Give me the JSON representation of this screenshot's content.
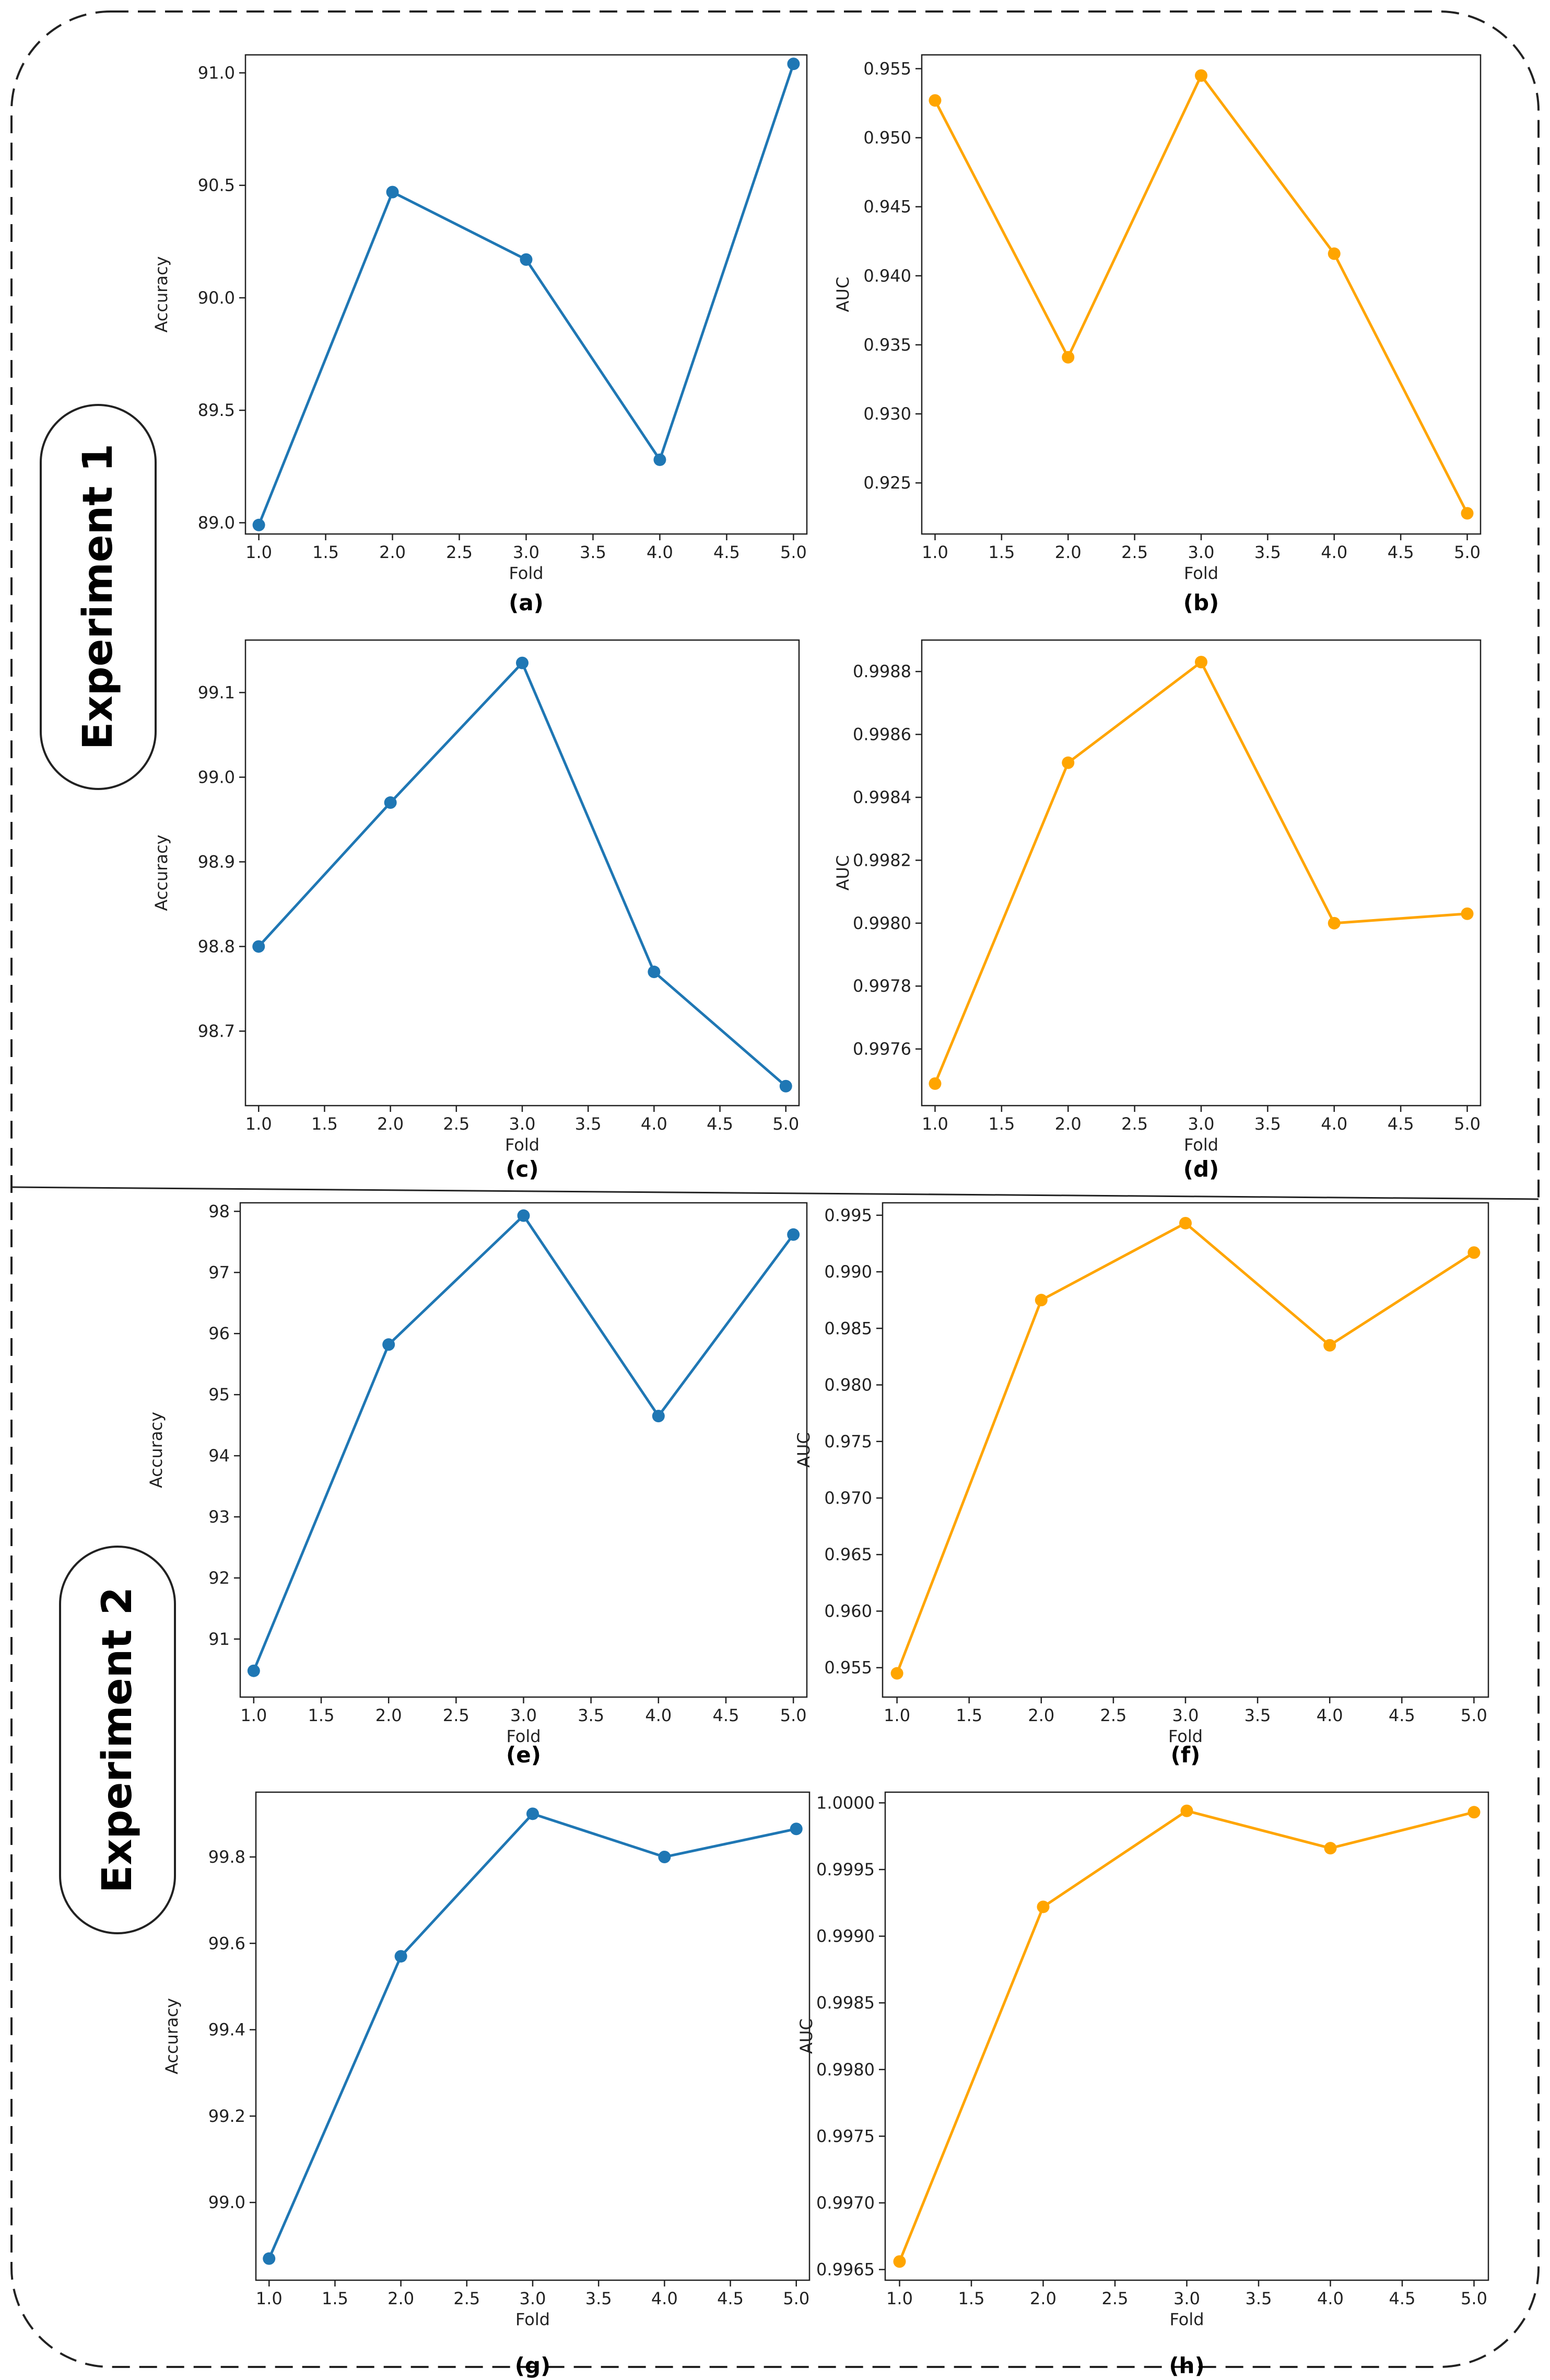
{
  "figure": {
    "experiments": [
      "Experiment 1",
      "Experiment 2"
    ],
    "colors": {
      "accuracy": "#1f77b4",
      "auc": "#ffa500",
      "frame": "#222222"
    }
  },
  "chart_data": [
    {
      "type": "line",
      "caption": "(a)",
      "color": "#1f77b4",
      "title": "",
      "xlabel": "Fold",
      "ylabel": "Accuracy",
      "x": [
        1.0,
        2.0,
        3.0,
        4.0,
        5.0
      ],
      "values": [
        88.99,
        90.47,
        90.17,
        89.28,
        91.04
      ],
      "xlim": [
        0.9,
        5.1
      ],
      "ylim": [
        88.95,
        91.08
      ],
      "xticks": [
        1.0,
        1.5,
        2.0,
        2.5,
        3.0,
        3.5,
        4.0,
        4.5,
        5.0
      ],
      "xtick_labels": [
        "1.0",
        "1.5",
        "2.0",
        "2.5",
        "3.0",
        "3.5",
        "4.0",
        "4.5",
        "5.0"
      ],
      "yticks": [
        89.0,
        89.5,
        90.0,
        90.5,
        91.0
      ],
      "ytick_labels": [
        "89.0",
        "89.5",
        "90.0",
        "90.5",
        "91.0"
      ]
    },
    {
      "type": "line",
      "caption": "(b)",
      "color": "#ffa500",
      "title": "",
      "xlabel": "Fold",
      "ylabel": "AUC",
      "x": [
        1.0,
        2.0,
        3.0,
        4.0,
        5.0
      ],
      "values": [
        0.9527,
        0.9341,
        0.9545,
        0.9416,
        0.9228
      ],
      "xlim": [
        0.9,
        5.1
      ],
      "ylim": [
        0.9213,
        0.956
      ],
      "xticks": [
        1.0,
        1.5,
        2.0,
        2.5,
        3.0,
        3.5,
        4.0,
        4.5,
        5.0
      ],
      "xtick_labels": [
        "1.0",
        "1.5",
        "2.0",
        "2.5",
        "3.0",
        "3.5",
        "4.0",
        "4.5",
        "5.0"
      ],
      "yticks": [
        0.925,
        0.93,
        0.935,
        0.94,
        0.945,
        0.95,
        0.955
      ],
      "ytick_labels": [
        "0.925",
        "0.930",
        "0.935",
        "0.940",
        "0.945",
        "0.950",
        "0.955"
      ]
    },
    {
      "type": "line",
      "caption": "(c)",
      "color": "#1f77b4",
      "title": "",
      "xlabel": "Fold",
      "ylabel": "Accuracy",
      "x": [
        1.0,
        2.0,
        3.0,
        4.0,
        5.0
      ],
      "values": [
        98.8,
        98.97,
        99.135,
        98.77,
        98.635
      ],
      "xlim": [
        0.9,
        5.1
      ],
      "ylim": [
        98.612,
        99.162
      ],
      "xticks": [
        1.0,
        1.5,
        2.0,
        2.5,
        3.0,
        3.5,
        4.0,
        4.5,
        5.0
      ],
      "xtick_labels": [
        "1.0",
        "1.5",
        "2.0",
        "2.5",
        "3.0",
        "3.5",
        "4.0",
        "4.5",
        "5.0"
      ],
      "yticks": [
        98.7,
        98.8,
        98.9,
        99.0,
        99.1
      ],
      "ytick_labels": [
        "98.7",
        "98.8",
        "98.9",
        "99.0",
        "99.1"
      ]
    },
    {
      "type": "line",
      "caption": "(d)",
      "color": "#ffa500",
      "title": "",
      "xlabel": "Fold",
      "ylabel": "AUC",
      "x": [
        1.0,
        2.0,
        3.0,
        4.0,
        5.0
      ],
      "values": [
        0.99749,
        0.99851,
        0.99883,
        0.998,
        0.99803
      ],
      "xlim": [
        0.9,
        5.1
      ],
      "ylim": [
        0.99742,
        0.9989
      ],
      "xticks": [
        1.0,
        1.5,
        2.0,
        2.5,
        3.0,
        3.5,
        4.0,
        4.5,
        5.0
      ],
      "xtick_labels": [
        "1.0",
        "1.5",
        "2.0",
        "2.5",
        "3.0",
        "3.5",
        "4.0",
        "4.5",
        "5.0"
      ],
      "yticks": [
        0.9976,
        0.9978,
        0.998,
        0.9982,
        0.9984,
        0.9986,
        0.9988
      ],
      "ytick_labels": [
        "0.9976",
        "0.9978",
        "0.9980",
        "0.9982",
        "0.9984",
        "0.9986",
        "0.9988"
      ]
    },
    {
      "type": "line",
      "caption": "(e)",
      "color": "#1f77b4",
      "title": "",
      "xlabel": "Fold",
      "ylabel": "Accuracy",
      "x": [
        1.0,
        2.0,
        3.0,
        4.0,
        5.0
      ],
      "values": [
        90.48,
        95.82,
        97.93,
        94.65,
        97.62
      ],
      "xlim": [
        0.9,
        5.1
      ],
      "ylim": [
        90.05,
        98.14
      ],
      "xticks": [
        1.0,
        1.5,
        2.0,
        2.5,
        3.0,
        3.5,
        4.0,
        4.5,
        5.0
      ],
      "xtick_labels": [
        "1.0",
        "1.5",
        "2.0",
        "2.5",
        "3.0",
        "3.5",
        "4.0",
        "4.5",
        "5.0"
      ],
      "yticks": [
        91,
        92,
        93,
        94,
        95,
        96,
        97,
        98
      ],
      "ytick_labels": [
        "91",
        "92",
        "93",
        "94",
        "95",
        "96",
        "97",
        "98"
      ]
    },
    {
      "type": "line",
      "caption": "(f)",
      "color": "#ffa500",
      "title": "",
      "xlabel": "Fold",
      "ylabel": "AUC",
      "x": [
        1.0,
        2.0,
        3.0,
        4.0,
        5.0
      ],
      "values": [
        0.9545,
        0.9875,
        0.9943,
        0.9835,
        0.9917
      ],
      "xlim": [
        0.9,
        5.1
      ],
      "ylim": [
        0.9524,
        0.9961
      ],
      "xticks": [
        1.0,
        1.5,
        2.0,
        2.5,
        3.0,
        3.5,
        4.0,
        4.5,
        5.0
      ],
      "xtick_labels": [
        "1.0",
        "1.5",
        "2.0",
        "2.5",
        "3.0",
        "3.5",
        "4.0",
        "4.5",
        "5.0"
      ],
      "yticks": [
        0.955,
        0.96,
        0.965,
        0.97,
        0.975,
        0.98,
        0.985,
        0.99,
        0.995
      ],
      "ytick_labels": [
        "0.955",
        "0.960",
        "0.965",
        "0.970",
        "0.975",
        "0.980",
        "0.985",
        "0.990",
        "0.995"
      ]
    },
    {
      "type": "line",
      "caption": "(g)",
      "color": "#1f77b4",
      "title": "",
      "xlabel": "Fold",
      "ylabel": "Accuracy",
      "x": [
        1.0,
        2.0,
        3.0,
        4.0,
        5.0
      ],
      "values": [
        98.87,
        99.57,
        99.9,
        99.8,
        99.865
      ],
      "xlim": [
        0.9,
        5.1
      ],
      "ylim": [
        98.82,
        99.95
      ],
      "xticks": [
        1.0,
        1.5,
        2.0,
        2.5,
        3.0,
        3.5,
        4.0,
        4.5,
        5.0
      ],
      "xtick_labels": [
        "1.0",
        "1.5",
        "2.0",
        "2.5",
        "3.0",
        "3.5",
        "4.0",
        "4.5",
        "5.0"
      ],
      "yticks": [
        99.0,
        99.2,
        99.4,
        99.6,
        99.8
      ],
      "ytick_labels": [
        "99.0",
        "99.2",
        "99.4",
        "99.6",
        "99.8"
      ]
    },
    {
      "type": "line",
      "caption": "(h)",
      "color": "#ffa500",
      "title": "",
      "xlabel": "Fold",
      "ylabel": "AUC",
      "x": [
        1.0,
        2.0,
        3.0,
        4.0,
        5.0
      ],
      "values": [
        0.99656,
        0.99922,
        0.99994,
        0.99966,
        0.99993
      ],
      "xlim": [
        0.9,
        5.1
      ],
      "ylim": [
        0.99642,
        1.00008
      ],
      "xticks": [
        1.0,
        1.5,
        2.0,
        2.5,
        3.0,
        3.5,
        4.0,
        4.5,
        5.0
      ],
      "xtick_labels": [
        "1.0",
        "1.5",
        "2.0",
        "2.5",
        "3.0",
        "3.5",
        "4.0",
        "4.5",
        "5.0"
      ],
      "yticks": [
        0.9965,
        0.997,
        0.9975,
        0.998,
        0.9985,
        0.999,
        0.9995,
        1.0
      ],
      "ytick_labels": [
        "0.9965",
        "0.9970",
        "0.9975",
        "0.9980",
        "0.9985",
        "0.9990",
        "0.9995",
        "1.0000"
      ]
    }
  ]
}
